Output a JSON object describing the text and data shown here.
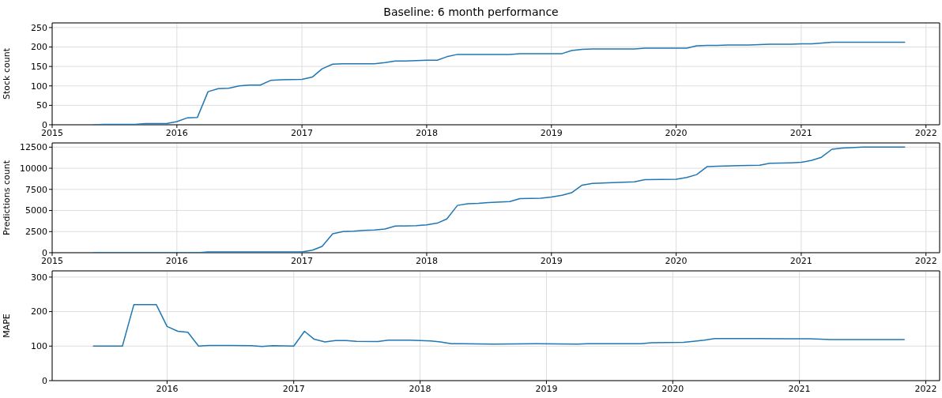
{
  "chart_data": [
    {
      "type": "line",
      "title": "Baseline: 6 month performance",
      "ylabel": "Stock count",
      "xlim": [
        "2015-01-01",
        "2022-02-10"
      ],
      "xticks": [
        "2015",
        "2016",
        "2017",
        "2018",
        "2019",
        "2020",
        "2021",
        "2022"
      ],
      "ylim": [
        0,
        262
      ],
      "yticks": [
        0,
        50,
        100,
        150,
        200,
        250
      ],
      "grid": true,
      "color": "#1f77b4",
      "x": [
        "2015-05",
        "2015-06",
        "2015-09",
        "2015-10",
        "2015-12",
        "2016-01",
        "2016-02",
        "2016-03",
        "2016-04",
        "2016-05",
        "2016-06",
        "2016-07",
        "2016-08",
        "2016-09",
        "2016-10",
        "2016-11",
        "2017-01",
        "2017-02",
        "2017-03",
        "2017-04",
        "2017-05",
        "2017-08",
        "2017-09",
        "2017-10",
        "2017-11",
        "2018-01",
        "2018-02",
        "2018-03",
        "2018-04",
        "2018-09",
        "2018-10",
        "2019-02",
        "2019-03",
        "2019-04",
        "2019-05",
        "2019-09",
        "2019-10",
        "2020-02",
        "2020-03",
        "2020-04",
        "2020-05",
        "2020-06",
        "2020-08",
        "2020-10",
        "2020-12",
        "2021-01",
        "2021-02",
        "2021-04",
        "2021-11"
      ],
      "values": [
        0,
        1,
        1,
        3,
        3,
        8,
        18,
        19,
        85,
        93,
        94,
        100,
        102,
        102,
        114,
        116,
        117,
        123,
        144,
        156,
        157,
        157,
        160,
        164,
        164,
        166,
        166,
        175,
        181,
        181,
        183,
        183,
        191,
        194,
        195,
        195,
        197,
        197,
        203,
        204,
        204,
        205,
        205,
        207,
        207,
        208,
        208,
        212,
        212
      ]
    },
    {
      "type": "line",
      "ylabel": "Predictions count",
      "xlim": [
        "2015-01-01",
        "2022-02-10"
      ],
      "xticks": [
        "2015",
        "2016",
        "2017",
        "2018",
        "2019",
        "2020",
        "2021",
        "2022"
      ],
      "ylim": [
        0,
        13000
      ],
      "yticks": [
        0,
        2500,
        5000,
        7500,
        10000,
        12500
      ],
      "grid": true,
      "color": "#1f77b4",
      "x": [
        "2015-05",
        "2016-03",
        "2016-04",
        "2016-12",
        "2017-01",
        "2017-02",
        "2017-03",
        "2017-04",
        "2017-05",
        "2017-06",
        "2017-07",
        "2017-08",
        "2017-09",
        "2017-10",
        "2017-12",
        "2018-01",
        "2018-02",
        "2018-03",
        "2018-04",
        "2018-05",
        "2018-06",
        "2018-07",
        "2018-09",
        "2018-10",
        "2018-12",
        "2019-01",
        "2019-02",
        "2019-03",
        "2019-04",
        "2019-05",
        "2019-07",
        "2019-09",
        "2019-10",
        "2020-01",
        "2020-02",
        "2020-03",
        "2020-04",
        "2020-05",
        "2020-07",
        "2020-09",
        "2020-10",
        "2020-12",
        "2021-01",
        "2021-02",
        "2021-03",
        "2021-04",
        "2021-05",
        "2021-07",
        "2021-11"
      ],
      "values": [
        0,
        0,
        100,
        100,
        100,
        300,
        750,
        2250,
        2500,
        2550,
        2650,
        2700,
        2800,
        3150,
        3200,
        3300,
        3500,
        4000,
        5600,
        5800,
        5850,
        5950,
        6050,
        6400,
        6450,
        6600,
        6800,
        7100,
        8000,
        8200,
        8300,
        8400,
        8650,
        8700,
        8900,
        9250,
        10200,
        10250,
        10300,
        10350,
        10600,
        10650,
        10700,
        10950,
        11300,
        12250,
        12400,
        12500,
        12500
      ]
    },
    {
      "type": "line",
      "ylabel": "MAPE",
      "xlim": [
        "2015-02-03",
        "2022-02-10"
      ],
      "xticks": [
        "2016",
        "2017",
        "2018",
        "2019",
        "2020",
        "2021",
        "2022"
      ],
      "ylim": [
        0,
        318
      ],
      "yticks": [
        0,
        100,
        200,
        300
      ],
      "grid": true,
      "color": "#1f77b4",
      "x": [
        "2015-06",
        "2015-08",
        "2015-08-25",
        "2015-09-27",
        "2015-12-01",
        "2016-01",
        "2016-02",
        "2016-03",
        "2016-04",
        "2016-05",
        "2016-07",
        "2016-09",
        "2016-10",
        "2016-11",
        "2017-01",
        "2017-02",
        "2017-03",
        "2017-04",
        "2017-05",
        "2017-06",
        "2017-07",
        "2017-09",
        "2017-10",
        "2017-12",
        "2018-02",
        "2018-03",
        "2018-04",
        "2018-05",
        "2018-08",
        "2018-12",
        "2019-04",
        "2019-05",
        "2019-10",
        "2019-11",
        "2020-02",
        "2020-03",
        "2020-04",
        "2020-05",
        "2020-09",
        "2020-12",
        "2021-02",
        "2021-04",
        "2021-05",
        "2021-11"
      ],
      "values": [
        100,
        100,
        100,
        220,
        220,
        157,
        143,
        140,
        100,
        102,
        102,
        101,
        99,
        101,
        100,
        143,
        120,
        112,
        116,
        116,
        114,
        113,
        117,
        117,
        115,
        112,
        107,
        107,
        106,
        107,
        106,
        107,
        107,
        110,
        111,
        114,
        117,
        122,
        122,
        121,
        121,
        119,
        119,
        119
      ]
    }
  ]
}
